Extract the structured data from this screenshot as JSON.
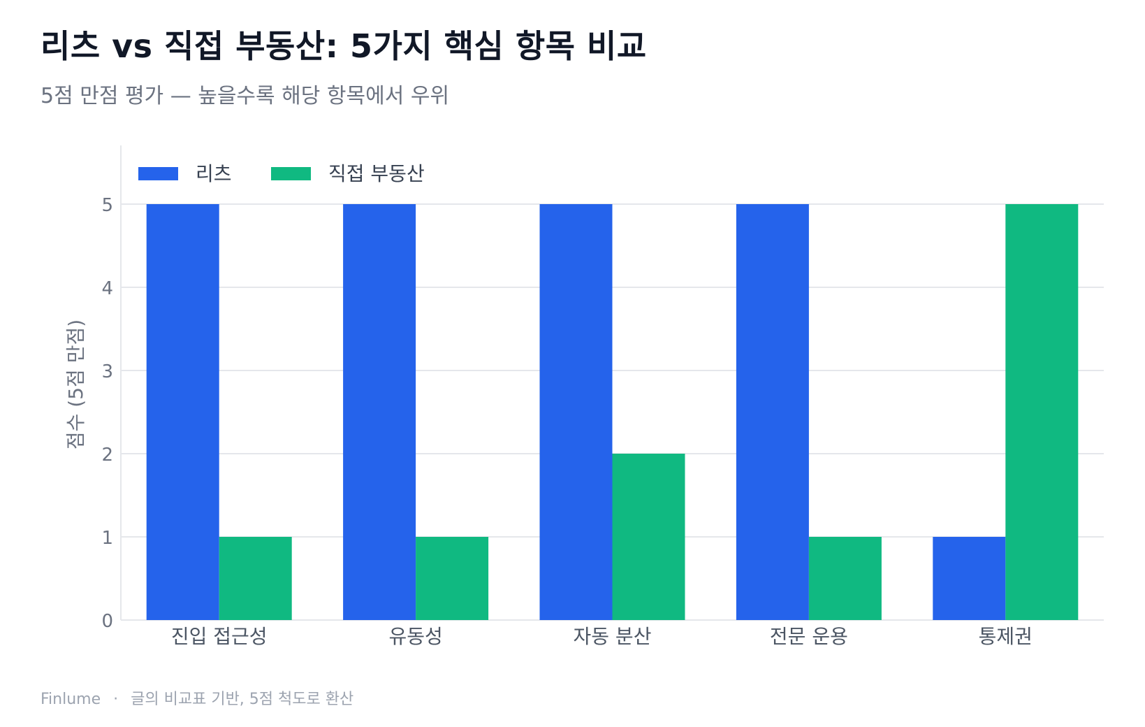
{
  "header": {
    "title": "리츠 vs 직접 부동산: 5가지 핵심 항목 비교",
    "subtitle": "5점 만점 평가 — 높을수록 해당 항목에서 우위"
  },
  "footer": {
    "brand": "Finlume",
    "separator": "·",
    "note": "글의 비교표 기반, 5점 척도로 환산"
  },
  "chart_data": {
    "type": "bar",
    "title": "리츠 vs 직접 부동산: 5가지 핵심 항목 비교",
    "subtitle": "5점 만점 평가 — 높을수록 해당 항목에서 우위",
    "xlabel": "",
    "ylabel": "점수 (5점 만점)",
    "categories": [
      "진입 접근성",
      "유동성",
      "자동 분산",
      "전문 운용",
      "통제권"
    ],
    "series": [
      {
        "name": "리츠",
        "values": [
          5,
          5,
          5,
          5,
          1
        ],
        "color": "#2563eb"
      },
      {
        "name": "직접 부동산",
        "values": [
          1,
          1,
          2,
          1,
          5
        ],
        "color": "#10b981"
      }
    ],
    "ylim": [
      0,
      5
    ],
    "yticks": [
      0,
      1,
      2,
      3,
      4,
      5
    ],
    "grid": true,
    "legend_position": "top-left"
  }
}
